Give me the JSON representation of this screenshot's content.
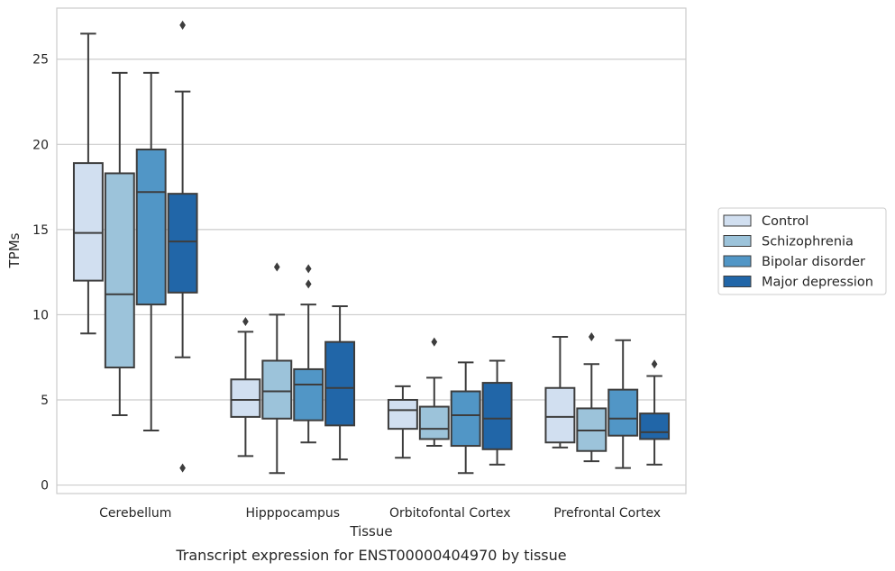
{
  "caption": "Transcript expression for ENST00000404970 by tissue",
  "chart_data": {
    "type": "box",
    "title": "",
    "xlabel": "Tissue",
    "ylabel": "TPMs",
    "ylim": [
      -0.5,
      28
    ],
    "yticks": [
      0,
      5,
      10,
      15,
      20,
      25
    ],
    "grid": "horizontal",
    "legend_position": "right",
    "categories": [
      "Cerebellum",
      "Hipppocampus",
      "Orbitofontal Cortex",
      "Prefrontal Cortex"
    ],
    "series": [
      {
        "name": "Control",
        "color": "#d1dff0",
        "boxes": [
          {
            "whislo": 8.9,
            "q1": 12.0,
            "med": 14.8,
            "q3": 18.9,
            "whishi": 26.5,
            "fliers": []
          },
          {
            "whislo": 1.7,
            "q1": 4.0,
            "med": 5.0,
            "q3": 6.2,
            "whishi": 9.0,
            "fliers": [
              9.6
            ]
          },
          {
            "whislo": 1.6,
            "q1": 3.3,
            "med": 4.4,
            "q3": 5.0,
            "whishi": 5.8,
            "fliers": []
          },
          {
            "whislo": 2.2,
            "q1": 2.5,
            "med": 4.0,
            "q3": 5.7,
            "whishi": 8.7,
            "fliers": []
          }
        ]
      },
      {
        "name": "Schizophrenia",
        "color": "#9cc3da",
        "boxes": [
          {
            "whislo": 4.1,
            "q1": 6.9,
            "med": 11.2,
            "q3": 18.3,
            "whishi": 24.2,
            "fliers": []
          },
          {
            "whislo": 0.7,
            "q1": 3.9,
            "med": 5.5,
            "q3": 7.3,
            "whishi": 10.0,
            "fliers": [
              12.8
            ]
          },
          {
            "whislo": 2.3,
            "q1": 2.7,
            "med": 3.3,
            "q3": 4.6,
            "whishi": 6.3,
            "fliers": [
              8.4
            ]
          },
          {
            "whislo": 1.4,
            "q1": 2.0,
            "med": 3.2,
            "q3": 4.5,
            "whishi": 7.1,
            "fliers": [
              8.7
            ]
          }
        ]
      },
      {
        "name": "Bipolar disorder",
        "color": "#5196c6",
        "boxes": [
          {
            "whislo": 3.2,
            "q1": 10.6,
            "med": 17.2,
            "q3": 19.7,
            "whishi": 24.2,
            "fliers": []
          },
          {
            "whislo": 2.5,
            "q1": 3.8,
            "med": 5.9,
            "q3": 6.8,
            "whishi": 10.6,
            "fliers": [
              11.8,
              12.7
            ]
          },
          {
            "whislo": 0.7,
            "q1": 2.3,
            "med": 4.1,
            "q3": 5.5,
            "whishi": 7.2,
            "fliers": []
          },
          {
            "whislo": 1.0,
            "q1": 2.9,
            "med": 3.9,
            "q3": 5.6,
            "whishi": 8.5,
            "fliers": []
          }
        ]
      },
      {
        "name": "Major depression",
        "color": "#2166a8",
        "boxes": [
          {
            "whislo": 7.5,
            "q1": 11.3,
            "med": 14.3,
            "q3": 17.1,
            "whishi": 23.1,
            "fliers": [
              1.0,
              27.0
            ]
          },
          {
            "whislo": 1.5,
            "q1": 3.5,
            "med": 5.7,
            "q3": 8.4,
            "whishi": 10.5,
            "fliers": []
          },
          {
            "whislo": 1.2,
            "q1": 2.1,
            "med": 3.9,
            "q3": 6.0,
            "whishi": 7.3,
            "fliers": []
          },
          {
            "whislo": 1.2,
            "q1": 2.7,
            "med": 3.1,
            "q3": 4.2,
            "whishi": 6.4,
            "fliers": [
              7.1
            ]
          }
        ]
      }
    ]
  }
}
